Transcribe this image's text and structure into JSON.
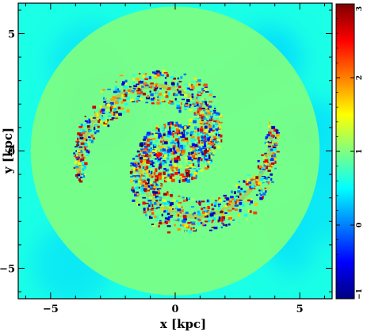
{
  "chart_data": {
    "type": "heatmap",
    "title": "",
    "xlabel": "x [kpc]",
    "ylabel": "y [kpc]",
    "xlim": [
      -6.3,
      6.3
    ],
    "ylim": [
      -6.3,
      6.3
    ],
    "x_ticks": [
      -5,
      0,
      5
    ],
    "y_ticks": [
      -5,
      0,
      5
    ],
    "x_tick_labels": [
      "−5",
      "0",
      "5"
    ],
    "y_tick_labels": [
      "−5",
      "0",
      "5"
    ],
    "colorbar": {
      "range": [
        -1,
        3
      ],
      "ticks": [
        -1,
        0,
        1,
        2,
        3
      ],
      "tick_labels": [
        "−1",
        "0",
        "1",
        "2",
        "3"
      ],
      "colormap": [
        "#00007f",
        "#0000ff",
        "#0080ff",
        "#00ffff",
        "#80ff80",
        "#ffff00",
        "#ff8000",
        "#ff0000",
        "#7f0000"
      ]
    },
    "structure": {
      "background_value": 0.6,
      "disk_radius": 5.8,
      "disk_value": 1.0,
      "spiral_arms": 2,
      "arm_pitch": "trailing, counter-clockwise",
      "core_radius": 1.5,
      "core_value_range": [
        -1,
        3
      ],
      "arm_value_range": [
        -1,
        3
      ],
      "grid": false
    }
  }
}
